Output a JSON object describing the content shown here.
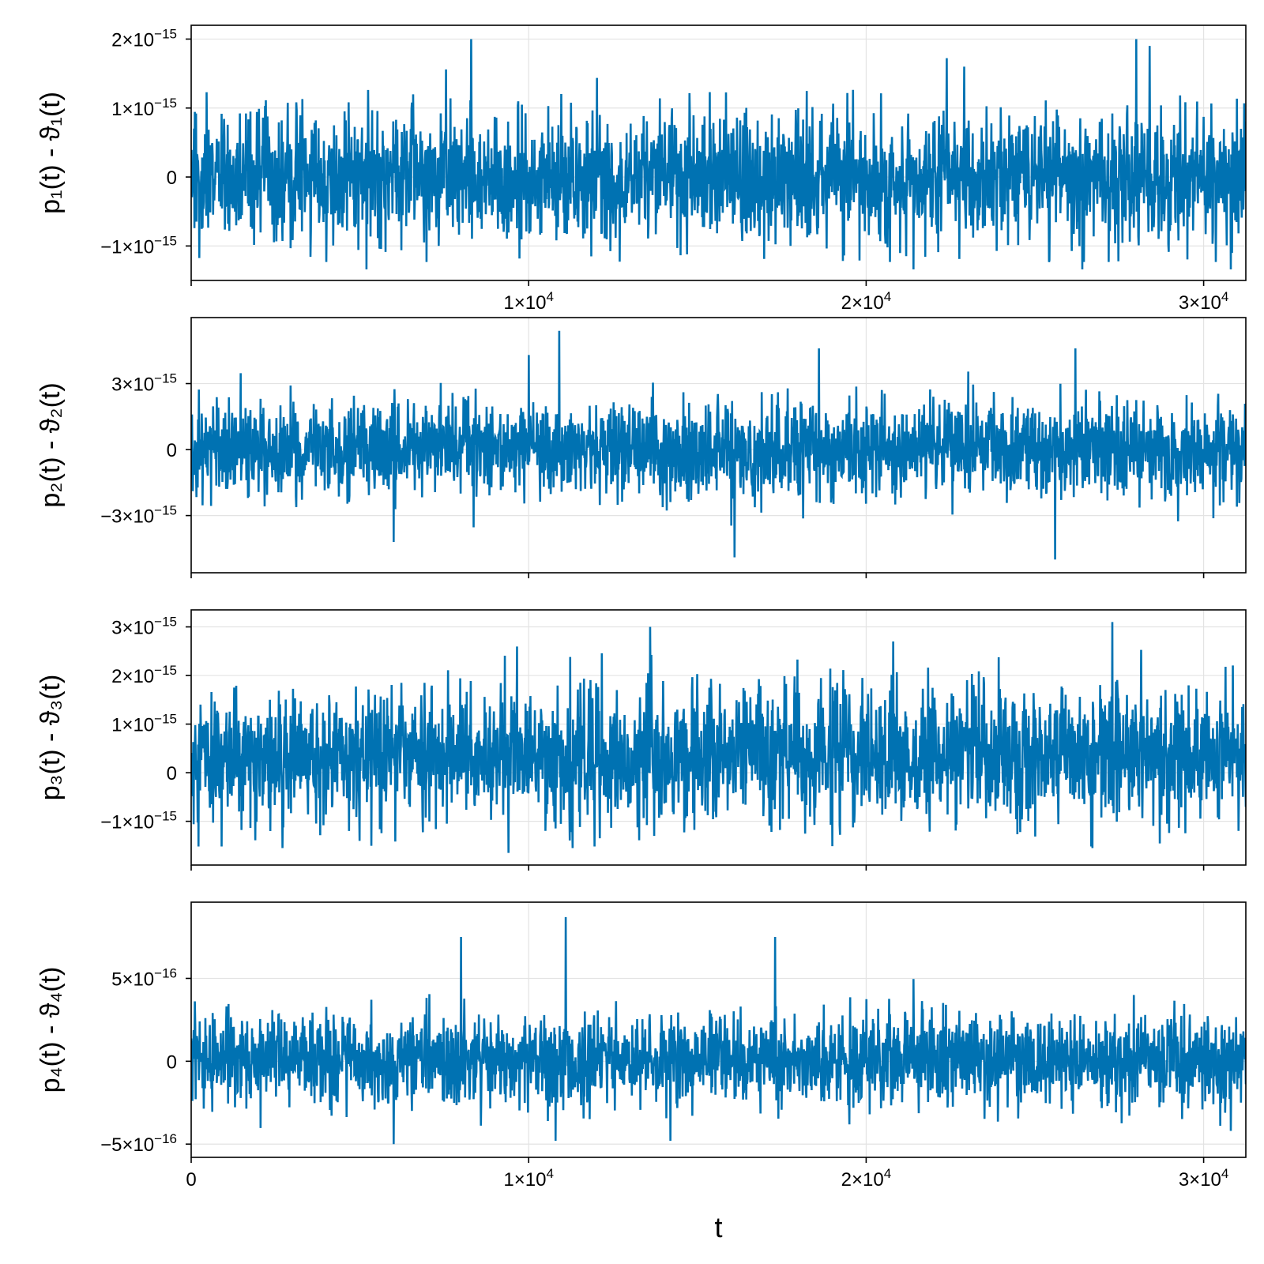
{
  "series_color": "#0072b2",
  "chart_data": [
    {
      "type": "line",
      "ylabel": "p₁(t) - ϑ₁(t)",
      "xlim": [
        0,
        31250
      ],
      "ylim": [
        -1.5e-15,
        2.2e-15
      ],
      "grid": true,
      "x_ticks": [
        {
          "value": 0,
          "mantissa": "",
          "exponent": ""
        },
        {
          "value": 10000,
          "mantissa": "1×10",
          "exponent": "4"
        },
        {
          "value": 20000,
          "mantissa": "2×10",
          "exponent": "4"
        },
        {
          "value": 30000,
          "mantissa": "3×10",
          "exponent": "4"
        }
      ],
      "y_ticks": [
        {
          "value": 2e-15,
          "mantissa": "2×10",
          "exponent": "−15"
        },
        {
          "value": 1e-15,
          "mantissa": "1×10",
          "exponent": "−15"
        },
        {
          "value": 0,
          "mantissa": "0",
          "exponent": ""
        },
        {
          "value": -1e-15,
          "mantissa": "−1×10",
          "exponent": "−15"
        }
      ],
      "series": [
        {
          "x_range": [
            0,
            31250
          ],
          "y_center": 0,
          "y_spread": 1.1e-15,
          "y_max": 2e-15,
          "y_min": -1.34e-15,
          "spikes_up": [
            [
              8300,
              2e-15
            ],
            [
              28000,
              2e-15
            ],
            [
              28400,
              1.9e-15
            ],
            [
              22900,
              1.6e-15
            ]
          ],
          "spikes_down": [
            [
              5200,
              -1.34e-15
            ],
            [
              21400,
              -1.34e-15
            ],
            [
              26400,
              -1.34e-15
            ],
            [
              30800,
              -1.34e-15
            ]
          ]
        }
      ]
    },
    {
      "type": "line",
      "ylabel": "p₂(t) - ϑ₂(t)",
      "xlim": [
        0,
        31250
      ],
      "ylim": [
        -5.6e-15,
        6e-15
      ],
      "grid": true,
      "x_ticks": [
        {
          "value": 0,
          "mantissa": "",
          "exponent": ""
        },
        {
          "value": 10000,
          "mantissa": "",
          "exponent": ""
        },
        {
          "value": 20000,
          "mantissa": "",
          "exponent": ""
        },
        {
          "value": 30000,
          "mantissa": "",
          "exponent": ""
        }
      ],
      "y_ticks": [
        {
          "value": 3e-15,
          "mantissa": "3×10",
          "exponent": "−15"
        },
        {
          "value": 0,
          "mantissa": "0",
          "exponent": ""
        },
        {
          "value": -3e-15,
          "mantissa": "−3×10",
          "exponent": "−15"
        }
      ],
      "series": [
        {
          "x_range": [
            0,
            31250
          ],
          "y_center": 0,
          "y_spread": 2.6e-15,
          "y_max": 5.4e-15,
          "y_min": -5e-15,
          "spikes_up": [
            [
              10900,
              5.4e-15
            ],
            [
              10000,
              4.3e-15
            ],
            [
              26200,
              4.6e-15
            ],
            [
              18600,
              4.6e-15
            ]
          ],
          "spikes_down": [
            [
              16100,
              -4.9e-15
            ],
            [
              25600,
              -5e-15
            ],
            [
              6000,
              -4.2e-15
            ]
          ]
        }
      ]
    },
    {
      "type": "line",
      "ylabel": "p₃(t) - ϑ₃(t)",
      "xlim": [
        0,
        31250
      ],
      "ylim": [
        -1.9e-15,
        3.35e-15
      ],
      "grid": true,
      "x_ticks": [
        {
          "value": 0,
          "mantissa": "",
          "exponent": ""
        },
        {
          "value": 10000,
          "mantissa": "",
          "exponent": ""
        },
        {
          "value": 20000,
          "mantissa": "",
          "exponent": ""
        },
        {
          "value": 30000,
          "mantissa": "",
          "exponent": ""
        }
      ],
      "y_ticks": [
        {
          "value": 3e-15,
          "mantissa": "3×10",
          "exponent": "−15"
        },
        {
          "value": 2e-15,
          "mantissa": "2×10",
          "exponent": "−15"
        },
        {
          "value": 1e-15,
          "mantissa": "1×10",
          "exponent": "−15"
        },
        {
          "value": 0,
          "mantissa": "0",
          "exponent": ""
        },
        {
          "value": -1e-15,
          "mantissa": "−1×10",
          "exponent": "−15"
        }
      ],
      "series": [
        {
          "x_range": [
            0,
            31250
          ],
          "y_center": 3.5e-16,
          "y_spread": 1.6e-15,
          "y_max": 3.1e-15,
          "y_min": -1.65e-15,
          "spikes_up": [
            [
              27300,
              3.1e-15
            ],
            [
              13600,
              3e-15
            ],
            [
              20800,
              2.7e-15
            ]
          ],
          "spikes_down": [
            [
              9400,
              -1.65e-15
            ],
            [
              11300,
              -1.55e-15
            ],
            [
              2700,
              -1.55e-15
            ],
            [
              26700,
              -1.55e-15
            ]
          ]
        }
      ]
    },
    {
      "type": "line",
      "ylabel": "p₄(t) - ϑ₄(t)",
      "xlim": [
        0,
        31250
      ],
      "ylim": [
        -5.8e-16,
        9.6e-16
      ],
      "grid": true,
      "x_ticks": [
        {
          "value": 0,
          "mantissa": "0",
          "exponent": ""
        },
        {
          "value": 10000,
          "mantissa": "1×10",
          "exponent": "4"
        },
        {
          "value": 20000,
          "mantissa": "2×10",
          "exponent": "4"
        },
        {
          "value": 30000,
          "mantissa": "3×10",
          "exponent": "4"
        }
      ],
      "y_ticks": [
        {
          "value": 5e-16,
          "mantissa": "5×10",
          "exponent": "−16"
        },
        {
          "value": 0,
          "mantissa": "0",
          "exponent": ""
        },
        {
          "value": -5e-16,
          "mantissa": "−5×10",
          "exponent": "−16"
        }
      ],
      "xlabel": "t",
      "series": [
        {
          "x_range": [
            0,
            31250
          ],
          "y_center": 5e-18,
          "y_spread": 3.2e-16,
          "y_max": 8.7e-16,
          "y_min": -5e-16,
          "spikes_up": [
            [
              11100,
              8.7e-16
            ],
            [
              8000,
              7.5e-16
            ],
            [
              17300,
              7.5e-16
            ]
          ],
          "spikes_down": [
            [
              6000,
              -5e-16
            ],
            [
              10800,
              -4.8e-16
            ],
            [
              14200,
              -4.8e-16
            ],
            [
              30800,
              -4.2e-16
            ]
          ]
        }
      ]
    }
  ]
}
